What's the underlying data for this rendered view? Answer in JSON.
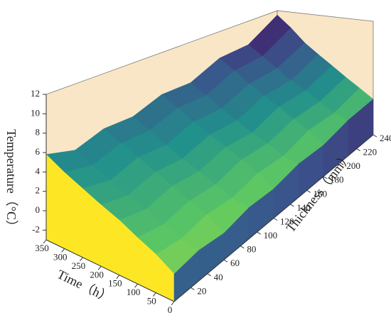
{
  "chart_data": {
    "type": "surface3d",
    "x_label": "Thickness（mm）",
    "y_label": "Time（h）",
    "z_label": "Temperature（°C）",
    "thickness": [
      0,
      30,
      60,
      90,
      120,
      150,
      180,
      210,
      240
    ],
    "time": [
      0,
      50,
      100,
      150,
      200,
      250,
      300,
      350
    ],
    "temperature": [
      [
        -0.3,
        0.1,
        -0.2,
        0.4,
        0.3,
        0.9,
        0.8,
        1.5,
        1.7
      ],
      [
        0.8,
        0.5,
        1.1,
        0.9,
        1.6,
        1.5,
        2.4,
        2.3,
        3.2
      ],
      [
        1.6,
        1.2,
        1.9,
        1.8,
        2.7,
        2.6,
        3.5,
        3.6,
        4.6
      ],
      [
        2.5,
        2.0,
        2.8,
        2.7,
        3.6,
        3.5,
        4.7,
        4.8,
        6.0
      ],
      [
        3.2,
        2.7,
        3.6,
        3.5,
        4.5,
        4.5,
        5.7,
        5.9,
        7.3
      ],
      [
        4.0,
        3.5,
        4.5,
        4.4,
        5.5,
        5.5,
        6.8,
        7.1,
        8.6
      ],
      [
        4.8,
        4.3,
        5.3,
        5.4,
        6.5,
        6.6,
        8.0,
        8.3,
        10.2
      ],
      [
        5.8,
        5.1,
        6.2,
        6.3,
        7.5,
        7.6,
        9.1,
        9.4,
        11.5
      ]
    ],
    "xlim": [
      0,
      240
    ],
    "xticks": [
      20,
      40,
      60,
      80,
      100,
      120,
      140,
      160,
      180,
      200,
      220,
      240
    ],
    "ylim": [
      0,
      350
    ],
    "yticks": [
      0,
      50,
      100,
      150,
      200,
      250,
      300,
      350
    ],
    "zlim": [
      -3,
      12
    ],
    "zticks": [
      -2,
      0,
      2,
      4,
      6,
      8,
      10,
      12
    ],
    "colormap": [
      "#fde725",
      "#5ec962",
      "#21918c",
      "#3b528b",
      "#440154"
    ],
    "wall_color": "#f9e6c6"
  }
}
